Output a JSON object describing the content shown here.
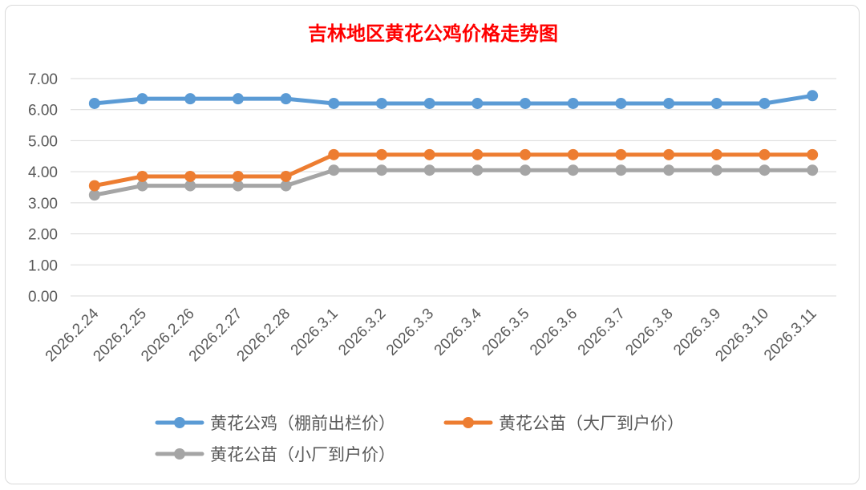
{
  "chart_data": {
    "type": "line",
    "title": "吉林地区黄花公鸡价格走势图",
    "title_color": "#ff0000",
    "xlabel": "",
    "ylabel": "",
    "categories": [
      "2026.2.24",
      "2026.2.25",
      "2026.2.26",
      "2026.2.27",
      "2026.2.28",
      "2026.3.1",
      "2026.3.2",
      "2026.3.3",
      "2026.3.4",
      "2026.3.5",
      "2026.3.6",
      "2026.3.7",
      "2026.3.8",
      "2026.3.9",
      "2026.3.10",
      "2026.3.11"
    ],
    "ylim": [
      0,
      7
    ],
    "yticks": [
      "0.00",
      "1.00",
      "2.00",
      "3.00",
      "4.00",
      "5.00",
      "6.00",
      "7.00"
    ],
    "grid": true,
    "legend_position": "bottom",
    "series": [
      {
        "name": "黄花公鸡（棚前出栏价）",
        "color": "#5b9bd5",
        "values": [
          6.2,
          6.35,
          6.35,
          6.35,
          6.35,
          6.2,
          6.2,
          6.2,
          6.2,
          6.2,
          6.2,
          6.2,
          6.2,
          6.2,
          6.2,
          6.45
        ]
      },
      {
        "name": "黄花公苗（大厂到户价）",
        "color": "#ed7d31",
        "values": [
          3.55,
          3.85,
          3.85,
          3.85,
          3.85,
          4.55,
          4.55,
          4.55,
          4.55,
          4.55,
          4.55,
          4.55,
          4.55,
          4.55,
          4.55,
          4.55
        ]
      },
      {
        "name": "黄花公苗（小厂到户价）",
        "color": "#a5a5a5",
        "values": [
          3.25,
          3.55,
          3.55,
          3.55,
          3.55,
          4.05,
          4.05,
          4.05,
          4.05,
          4.05,
          4.05,
          4.05,
          4.05,
          4.05,
          4.05,
          4.05
        ]
      }
    ]
  }
}
